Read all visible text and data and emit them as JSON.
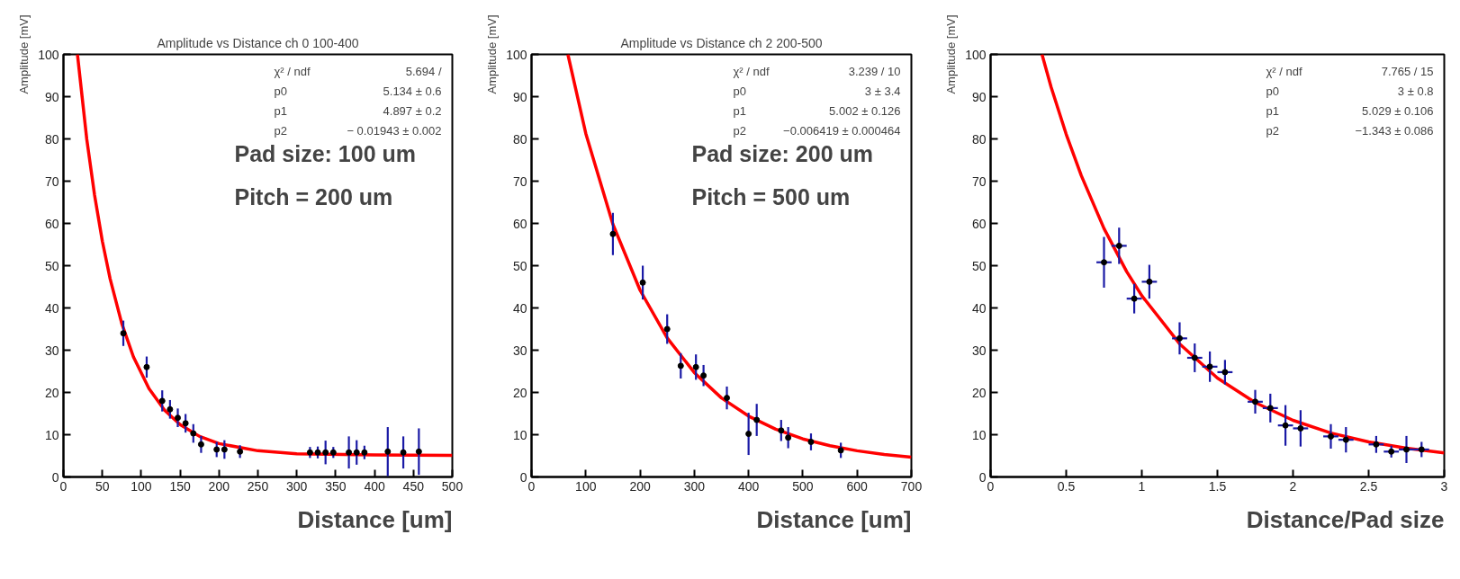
{
  "chart_data": [
    {
      "type": "scatter",
      "title": "Amplitude vs Distance ch 0 100-400",
      "xlabel": "Distance [um]",
      "ylabel": "Amplitude [mV]",
      "xlim": [
        0,
        500
      ],
      "ylim": [
        0,
        100
      ],
      "xticks": [
        0,
        50,
        100,
        150,
        200,
        250,
        300,
        350,
        400,
        450,
        500
      ],
      "yticks": [
        0,
        10,
        20,
        30,
        40,
        50,
        60,
        70,
        80,
        90,
        100
      ],
      "grid": false,
      "marker": "circle",
      "annotations": [
        "χ² / ndf",
        "5.694 /",
        "p0",
        "5.134 ± 0.6",
        "p1",
        "4.897 ± 0.2",
        "p2",
        "− 0.01943 ± 0.002",
        "Pad size: 100 um",
        "Pitch = 200 um"
      ],
      "series": [
        {
          "color": "#000000",
          "x": [
            77,
            107,
            127,
            137,
            147,
            157,
            167,
            177,
            197,
            207,
            227,
            317,
            327,
            337,
            347,
            367,
            377,
            387,
            417,
            437,
            457
          ],
          "values": [
            34,
            26,
            18,
            16,
            14,
            12.7,
            10.3,
            7.7,
            6.5,
            6.5,
            6,
            5.8,
            5.8,
            5.8,
            5.8,
            5.8,
            5.8,
            5.8,
            6,
            5.8,
            6
          ],
          "errors": [
            3,
            2.5,
            2.5,
            2.2,
            2.2,
            2.2,
            2.2,
            2,
            1.8,
            2.2,
            1.5,
            1.3,
            1.4,
            2.8,
            1.3,
            3.8,
            2.9,
            1.6,
            5.8,
            3.8,
            5.5
          ]
        },
        {
          "type": "line",
          "marker": "none",
          "color": "#ff0000",
          "line_style": "solid",
          "x": [
            18,
            30,
            40,
            50,
            60,
            75,
            90,
            110,
            130,
            150,
            175,
            200,
            250,
            300,
            400,
            500
          ],
          "values": [
            100,
            79.9,
            66.7,
            55.8,
            46.9,
            36.3,
            28.4,
            20.9,
            15.8,
            12.4,
            9.6,
            7.9,
            6.2,
            5.5,
            5.2,
            5.1
          ]
        }
      ]
    },
    {
      "type": "scatter",
      "title": "Amplitude vs Distance ch 2 200-500",
      "xlabel": "Distance [um]",
      "ylabel": "Amplitude [mV]",
      "xlim": [
        0,
        700
      ],
      "ylim": [
        0,
        100
      ],
      "xticks": [
        0,
        100,
        200,
        300,
        400,
        500,
        600,
        700
      ],
      "yticks": [
        0,
        10,
        20,
        30,
        40,
        50,
        60,
        70,
        80,
        90,
        100
      ],
      "grid": false,
      "marker": "circle",
      "annotations": [
        "χ² / ndf",
        "3.239 / 10",
        "p0",
        "3 ± 3.4",
        "p1",
        "5.002 ± 0.126",
        "p2",
        "−0.006419 ± 0.000464",
        "Pad size: 200 um",
        "Pitch = 500 um"
      ],
      "series": [
        {
          "color": "#000000",
          "x": [
            150,
            205,
            250,
            275,
            303,
            317,
            360,
            400,
            415,
            460,
            473,
            515,
            570
          ],
          "values": [
            57.5,
            46,
            35,
            26.3,
            26,
            24,
            18.7,
            10.2,
            13.5,
            11,
            9.3,
            8.3,
            6.3
          ],
          "errors": [
            5,
            4,
            3.5,
            3,
            3,
            2.5,
            2.7,
            5,
            3.8,
            2.5,
            2.5,
            2,
            1.8
          ]
        },
        {
          "type": "line",
          "marker": "none",
          "color": "#ff0000",
          "line_style": "solid",
          "x": [
            67,
            100,
            150,
            200,
            250,
            300,
            350,
            400,
            450,
            500,
            550,
            600,
            650,
            700
          ],
          "values": [
            100,
            81.3,
            59.8,
            44.2,
            32.9,
            24.7,
            18.7,
            14.4,
            11.3,
            9.0,
            7.4,
            6.2,
            5.3,
            4.7
          ]
        }
      ]
    },
    {
      "type": "scatter",
      "xlabel": "Distance/Pad size",
      "ylabel": "Amplitude [mV]",
      "xlim": [
        0,
        3
      ],
      "ylim": [
        0,
        100
      ],
      "xticks": [
        0,
        0.5,
        1,
        1.5,
        2,
        2.5,
        3
      ],
      "yticks": [
        0,
        10,
        20,
        30,
        40,
        50,
        60,
        70,
        80,
        90,
        100
      ],
      "grid": false,
      "marker": "circle",
      "annotations": [
        "χ² / ndf",
        "7.765 / 15",
        "p0",
        "3 ± 0.8",
        "p1",
        "5.029 ± 0.106",
        "p2",
        "−1.343 ± 0.086"
      ],
      "series": [
        {
          "color": "#000000",
          "x": [
            0.75,
            0.85,
            0.95,
            1.05,
            1.25,
            1.35,
            1.45,
            1.55,
            1.75,
            1.85,
            1.95,
            2.05,
            2.25,
            2.35,
            2.55,
            2.65,
            2.75,
            2.85
          ],
          "values": [
            50.8,
            54.7,
            42.2,
            46.2,
            32.8,
            28.2,
            26.1,
            24.8,
            17.8,
            16.3,
            12.2,
            11.5,
            9.6,
            8.8,
            7.7,
            6,
            6.5,
            6.5
          ],
          "errors": [
            6,
            4.3,
            3.5,
            4,
            3.8,
            3.4,
            3.6,
            2.9,
            2.8,
            3.4,
            4.8,
            4.3,
            2.9,
            3,
            2,
            1.4,
            3.2,
            1.8
          ],
          "xerrors": [
            0.05,
            0.05,
            0.05,
            0.05,
            0.05,
            0.05,
            0.05,
            0.05,
            0.05,
            0.05,
            0.05,
            0.05,
            0.05,
            0.05,
            0.05,
            0.05,
            0.05,
            0.05
          ]
        },
        {
          "type": "line",
          "marker": "none",
          "color": "#ff0000",
          "line_style": "solid",
          "x": [
            0.34,
            0.4,
            0.5,
            0.6,
            0.75,
            0.9,
            1.0,
            1.25,
            1.5,
            1.75,
            2.0,
            2.25,
            2.5,
            2.75,
            3.0
          ],
          "values": [
            100,
            92.3,
            81.1,
            71.3,
            58.8,
            48.6,
            42.9,
            31.5,
            23.4,
            17.6,
            13.4,
            10.4,
            8.3,
            6.8,
            5.7
          ]
        }
      ]
    }
  ]
}
